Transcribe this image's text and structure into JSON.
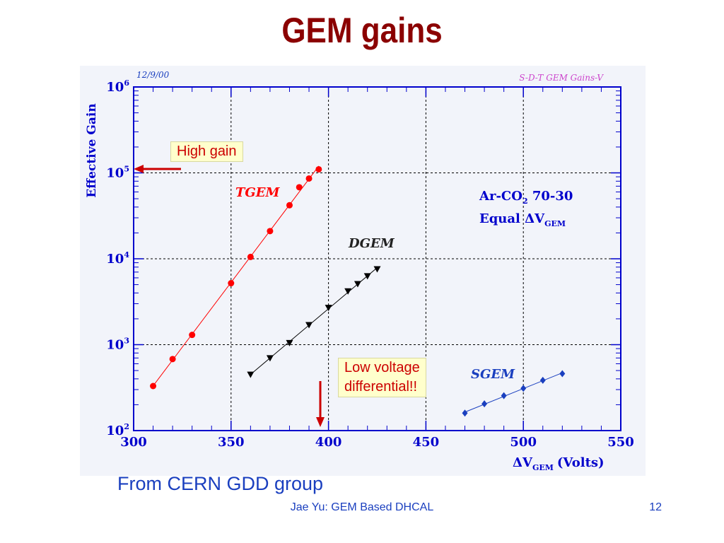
{
  "slide": {
    "title": "GEM gains",
    "credit": "From CERN GDD group",
    "footer": "Jae Yu: GEM Based DHCAL",
    "page_number": "12"
  },
  "callouts": {
    "high_gain": "High gain",
    "low_voltage_line1": "Low voltage",
    "low_voltage_line2": "differential!!"
  },
  "chart_data": {
    "type": "scatter",
    "date_tag": "12/9/00",
    "plot_tag": "S-D-T GEM Gains-V",
    "xlabel_main": "ΔV",
    "xlabel_sub": "GEM",
    "xlabel_unit": "(Volts)",
    "ylabel": "Effective Gain",
    "x_range": [
      300,
      550
    ],
    "x_ticks": [
      "300",
      "350",
      "400",
      "450",
      "500",
      "550"
    ],
    "y_range": [
      100,
      1000000
    ],
    "y_scale": "log",
    "y_tick_base": "10",
    "y_tick_exponents": [
      "2",
      "3",
      "4",
      "5",
      "6"
    ],
    "grid": "dashed",
    "gas_line1": "Ar-CO",
    "gas_sub": "2",
    "gas_line1_rest": " 70-30",
    "gas_line2": "Equal ΔV",
    "gas_line2_sub": "GEM",
    "series": [
      {
        "name": "TGEM",
        "color": "#ff0000",
        "marker": "circle",
        "x": [
          310,
          320,
          330,
          350,
          360,
          370,
          380,
          385,
          390,
          395
        ],
        "y": [
          330,
          680,
          1300,
          5200,
          10500,
          21000,
          42000,
          68000,
          86000,
          110000
        ]
      },
      {
        "name": "DGEM",
        "color": "#000000",
        "marker": "triangle-down",
        "x": [
          360,
          370,
          380,
          390,
          400,
          410,
          415,
          420,
          425
        ],
        "y": [
          450,
          700,
          1050,
          1700,
          2700,
          4200,
          5100,
          6300,
          7600
        ]
      },
      {
        "name": "SGEM",
        "color": "#1a3fbf",
        "marker": "diamond",
        "x": [
          470,
          480,
          490,
          500,
          510,
          520
        ],
        "y": [
          160,
          205,
          255,
          310,
          385,
          460
        ]
      }
    ]
  }
}
